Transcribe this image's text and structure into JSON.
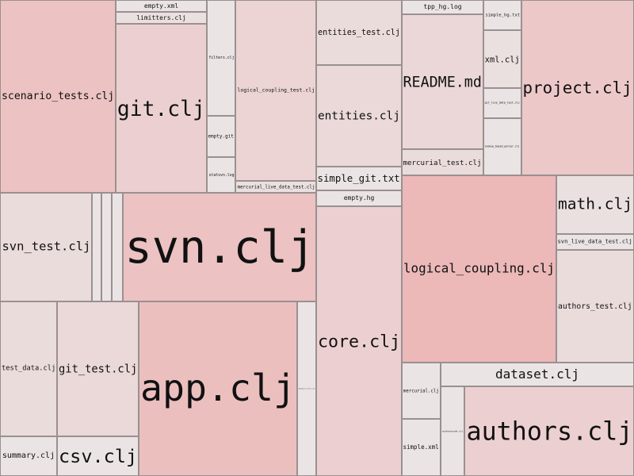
{
  "treemap": {
    "cells": [
      {
        "label": "scenario_tests.clj",
        "color": "#ecc2c2"
      },
      {
        "label": "empty.xml",
        "color": "#ebe4e4"
      },
      {
        "label": "limitters.clj",
        "color": "#ebe0e0"
      },
      {
        "label": "git.clj",
        "color": "#ecd0d1"
      },
      {
        "label": "filters.clj",
        "color": "#ebe4e4"
      },
      {
        "label": "empty.git",
        "color": "#ebe4e4"
      },
      {
        "label": "statsvn.log",
        "color": "#ebe4e4"
      },
      {
        "label": "logical_coupling_test.clj",
        "color": "#ecd4d4"
      },
      {
        "label": "mercurial_live_data_test.clj",
        "color": "#ebe0e0"
      },
      {
        "label": "entities_test.clj",
        "color": "#ebdcdc"
      },
      {
        "label": "entities.clj",
        "color": "#ebd9d9"
      },
      {
        "label": "simple_git.txt",
        "color": "#ebe4e4"
      },
      {
        "label": "tpp_hg.log",
        "color": "#ebe4e4"
      },
      {
        "label": "README.md",
        "color": "#ebd7d7"
      },
      {
        "label": "mercurial_test.clj",
        "color": "#ebdcdc"
      },
      {
        "label": "simple_hg.txt",
        "color": "#ebe4e4"
      },
      {
        "label": "xml.clj",
        "color": "#ebe0e0"
      },
      {
        "label": "git_live_data_test.clj",
        "color": "#ebe4e4"
      },
      {
        "label": "lookup_based_parser.clj",
        "color": "#ebe4e4"
      },
      {
        "label": "project.clj",
        "color": "#ecc8c8"
      },
      {
        "label": "svn_test.clj",
        "color": "#ebdcdc"
      },
      {
        "label": "",
        "color": "#ebe4e4"
      },
      {
        "label": "",
        "color": "#ebe4e4"
      },
      {
        "label": "",
        "color": "#ebe4e4"
      },
      {
        "label": "svn.clj",
        "color": "#ecc2c2"
      },
      {
        "label": "empty.hg",
        "color": "#ebe4e4"
      },
      {
        "label": "core.clj",
        "color": "#ecd0d1"
      },
      {
        "label": "logical_coupling.clj",
        "color": "#ecb8b8"
      },
      {
        "label": "math.clj",
        "color": "#ebe0e0"
      },
      {
        "label": "svn_live_data_test.clj",
        "color": "#ebe4e4"
      },
      {
        "label": "authors_test.clj",
        "color": "#ebdcdc"
      },
      {
        "label": "test_data.clj",
        "color": "#ebdcdc"
      },
      {
        "label": "git_test.clj",
        "color": "#ebd9d9"
      },
      {
        "label": "summary.clj",
        "color": "#ebe4e4"
      },
      {
        "label": "csv.clj",
        "color": "#ebe4e4"
      },
      {
        "label": "app.clj",
        "color": "#ecbfbf"
      },
      {
        "label": "dataset_test.clj",
        "color": "#ebe4e4"
      },
      {
        "label": "dataset.clj",
        "color": "#ebe4e4"
      },
      {
        "label": "mercurial.clj",
        "color": "#ebe4e4"
      },
      {
        "label": "simple.xml",
        "color": "#ebe4e4"
      },
      {
        "label": "workarounds.clj",
        "color": "#ebe4e4"
      },
      {
        "label": "authors.clj",
        "color": "#ecd0d1"
      }
    ]
  }
}
